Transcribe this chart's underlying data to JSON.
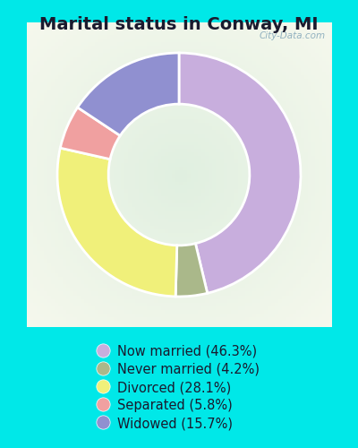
{
  "title": "Marital status in Conway, MI",
  "title_fontsize": 14,
  "background_cyan": "#00e8e8",
  "background_chart": "#d8eedf",
  "watermark": "City-Data.com",
  "slices": [
    46.3,
    4.2,
    28.1,
    5.8,
    15.7
  ],
  "labels": [
    "Now married (46.3%)",
    "Never married (4.2%)",
    "Divorced (28.1%)",
    "Separated (5.8%)",
    "Widowed (15.7%)"
  ],
  "colors": [
    "#c8aedd",
    "#aab88a",
    "#f0f07a",
    "#f0a0a0",
    "#9090d0"
  ],
  "startangle": 90,
  "legend_fontsize": 10.5,
  "donut_width": 0.42
}
